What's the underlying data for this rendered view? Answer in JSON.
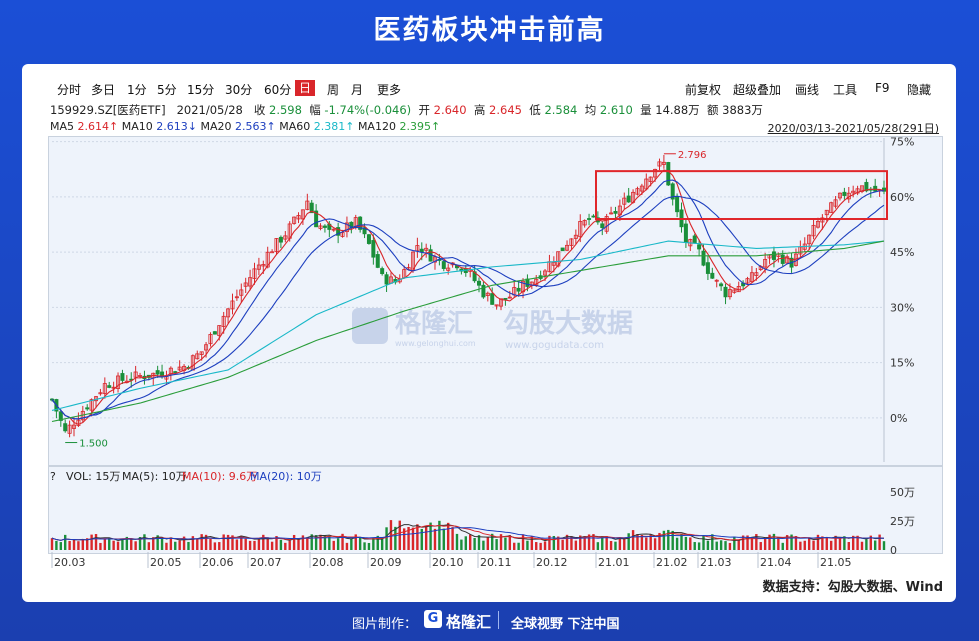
{
  "header": {
    "title": "医药板块冲击前高"
  },
  "toolbar": {
    "periods": [
      "分时",
      "多日",
      "1分",
      "5分",
      "15分",
      "30分",
      "60分",
      "日",
      "周",
      "月",
      "更多"
    ],
    "active": "日",
    "right": [
      "前复权",
      "超级叠加",
      "画线",
      "工具",
      "F9",
      "隐藏"
    ]
  },
  "info": {
    "code": "159929.SZ[医药ETF]",
    "date": "2021/05/28",
    "close_label": "收",
    "close": "2.598",
    "change_label": "幅",
    "change": "-1.74%(-0.046)",
    "open_label": "开",
    "open": "2.640",
    "high_label": "高",
    "high": "2.645",
    "low_label": "低",
    "low": "2.584",
    "avg_label": "均",
    "avg": "2.610",
    "vol_label": "量",
    "vol": "14.88万",
    "amt_label": "额",
    "amt": "3883万"
  },
  "ma_line": [
    {
      "text": "MA5",
      "val": "2.614↑",
      "color": "#d9262a"
    },
    {
      "text": "MA10",
      "val": "2.613↓",
      "color": "#1d3fbf"
    },
    {
      "text": "MA20",
      "val": "2.563↑",
      "color": "#1d3fbf"
    },
    {
      "text": "MA60",
      "val": "2.381↑",
      "color": "#19b8c8"
    },
    {
      "text": "MA120",
      "val": "2.395↑",
      "color": "#2a9d3a"
    }
  ],
  "range": "2020/03/13-2021/05/28(291日)",
  "watermark": {
    "brand": "格隆汇",
    "brand_url": "www.gelonghui.com",
    "brand2": "勾股大数据",
    "brand2_url": "www.gogudata.com"
  },
  "volume_legend": {
    "q": "?",
    "vol": "VOL: 15万",
    "ma5": "MA(5): 10万",
    "ma10": "MA(10): 9.6万",
    "ma20": "MA(20): 10万"
  },
  "source": "数据支持：勾股大数据、Wind",
  "footer": {
    "made_by": "图片制作：",
    "brand": "格隆汇",
    "slogan": "全球视野 下注中国"
  },
  "colors": {
    "up": "#d9262a",
    "down": "#1a8f3a",
    "ma5": "#d9262a",
    "ma10": "#1d3fbf",
    "ma20": "#1d3fbf",
    "ma60": "#19b8c8",
    "ma120": "#2a9d3a",
    "highlight": "#e0262b"
  },
  "chart_data": {
    "type": "candlestick",
    "x_ticks": [
      "20.03",
      "20.05",
      "20.06",
      "20.07",
      "20.08",
      "20.09",
      "20.10",
      "20.11",
      "20.12",
      "21.01",
      "21.02",
      "21.03",
      "21.04",
      "21.05"
    ],
    "y_axis": {
      "ticks": [
        "75%",
        "60%",
        "45%",
        "30%",
        "15%",
        "0%"
      ],
      "values": [
        75,
        60,
        45,
        30,
        15,
        0
      ],
      "ylim": [
        -12,
        76
      ]
    },
    "annotations": {
      "high": {
        "label": "2.796",
        "at": "21.02"
      },
      "low": {
        "label": "1.500",
        "at": "20.03"
      }
    },
    "highlight_box": {
      "x_from": "21.01",
      "x_to": "21.05",
      "y_from": 54,
      "y_to": 67
    },
    "percent_path": [
      [
        0,
        5
      ],
      [
        3,
        -4
      ],
      [
        7,
        2
      ],
      [
        12,
        9
      ],
      [
        18,
        11
      ],
      [
        24,
        12
      ],
      [
        30,
        14
      ],
      [
        34,
        18
      ],
      [
        38,
        26
      ],
      [
        42,
        33
      ],
      [
        46,
        40
      ],
      [
        50,
        46
      ],
      [
        53,
        50
      ],
      [
        56,
        55
      ],
      [
        58,
        59
      ],
      [
        60,
        53
      ],
      [
        63,
        50
      ],
      [
        66,
        51
      ],
      [
        69,
        53
      ],
      [
        72,
        47
      ],
      [
        75,
        38
      ],
      [
        78,
        37
      ],
      [
        80,
        40
      ],
      [
        83,
        47
      ],
      [
        86,
        44
      ],
      [
        89,
        42
      ],
      [
        92,
        42
      ],
      [
        95,
        39
      ],
      [
        98,
        34
      ],
      [
        101,
        31
      ],
      [
        104,
        33
      ],
      [
        107,
        36
      ],
      [
        110,
        38
      ],
      [
        113,
        42
      ],
      [
        116,
        46
      ],
      [
        119,
        51
      ],
      [
        122,
        54
      ],
      [
        125,
        52
      ],
      [
        128,
        56
      ],
      [
        131,
        60
      ],
      [
        134,
        64
      ],
      [
        137,
        68
      ],
      [
        139,
        69
      ],
      [
        141,
        59
      ],
      [
        144,
        48
      ],
      [
        147,
        45
      ],
      [
        150,
        38
      ],
      [
        153,
        34
      ],
      [
        156,
        36
      ],
      [
        159,
        38
      ],
      [
        162,
        43
      ],
      [
        165,
        44
      ],
      [
        168,
        42
      ],
      [
        171,
        47
      ],
      [
        174,
        53
      ],
      [
        177,
        57
      ],
      [
        180,
        61
      ],
      [
        183,
        63
      ],
      [
        186,
        62
      ],
      [
        189,
        61
      ]
    ],
    "ma_percent": {
      "ma60": [
        [
          0,
          2
        ],
        [
          20,
          8
        ],
        [
          40,
          13
        ],
        [
          60,
          28
        ],
        [
          80,
          38
        ],
        [
          100,
          41
        ],
        [
          120,
          43
        ],
        [
          140,
          48
        ],
        [
          160,
          46
        ],
        [
          180,
          47
        ],
        [
          189,
          48
        ]
      ],
      "ma120": [
        [
          0,
          -1
        ],
        [
          20,
          4
        ],
        [
          40,
          11
        ],
        [
          60,
          21
        ],
        [
          80,
          29
        ],
        [
          100,
          36
        ],
        [
          120,
          40
        ],
        [
          140,
          44
        ],
        [
          160,
          44
        ],
        [
          180,
          46
        ],
        [
          189,
          48
        ]
      ]
    },
    "volume": {
      "y_ticks": [
        "50万",
        "25万",
        "0"
      ],
      "values_wan": [
        50,
        25,
        0
      ]
    }
  }
}
